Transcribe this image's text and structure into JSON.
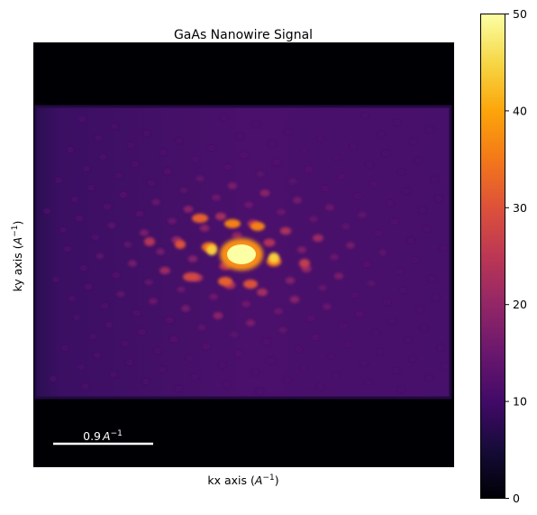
{
  "chart_data": {
    "type": "heatmap",
    "title": "GaAs Nanowire Signal",
    "xlabel": {
      "text": "kx axis (",
      "sym": "A",
      "sup": "−1",
      "close": ")"
    },
    "ylabel": {
      "text": "ky axis (",
      "sym": "A",
      "sup": "−1",
      "close": ")"
    },
    "colorbar": {
      "min": 0,
      "max": 50,
      "ticks": [
        0,
        10,
        20,
        30,
        40,
        50
      ],
      "tick_labels": [
        "0",
        "10",
        "20",
        "30",
        "40",
        "50"
      ],
      "colormap": "inferno"
    },
    "scalebar": {
      "label": "0.9",
      "unit_sym": "A",
      "unit_sup": "−1",
      "color": "#ffffff"
    },
    "background_value": 0,
    "pattern_base_value": 11,
    "central_peak_value": 50
  }
}
